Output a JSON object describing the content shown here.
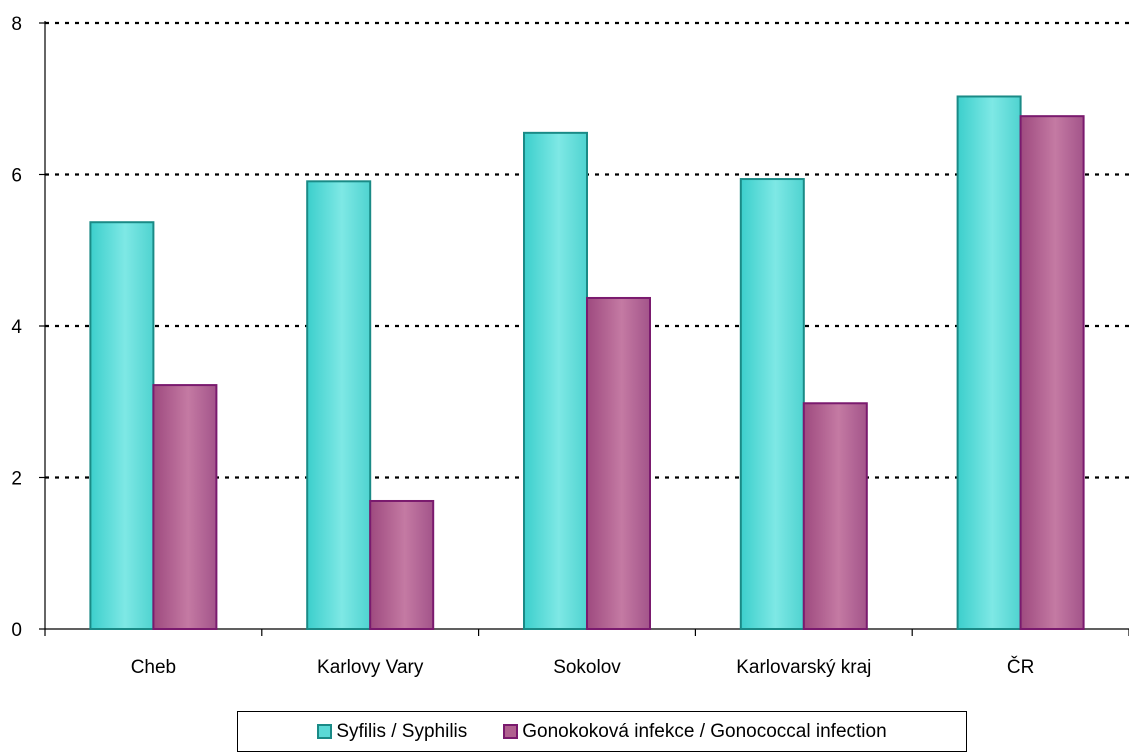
{
  "chart_data": {
    "type": "bar",
    "categories": [
      "Cheb",
      "Karlovy Vary",
      "Sokolov",
      "Karlovarský kraj",
      "ČR"
    ],
    "series": [
      {
        "name": "Syfilis / Syphilis",
        "values": [
          5.37,
          5.91,
          6.55,
          5.94,
          7.03
        ],
        "color": "#5ad9d6",
        "border": "#1a8a86"
      },
      {
        "name": "Gonokoková infekce / Gonococcal infection",
        "values": [
          3.22,
          1.69,
          4.37,
          2.98,
          6.77
        ],
        "color": "#b0608f",
        "border": "#7a1a6e"
      }
    ],
    "yticks": [
      "0",
      "2",
      "4",
      "6",
      "8"
    ],
    "ylim": [
      0,
      8
    ],
    "grid": true,
    "legend_position": "bottom"
  }
}
